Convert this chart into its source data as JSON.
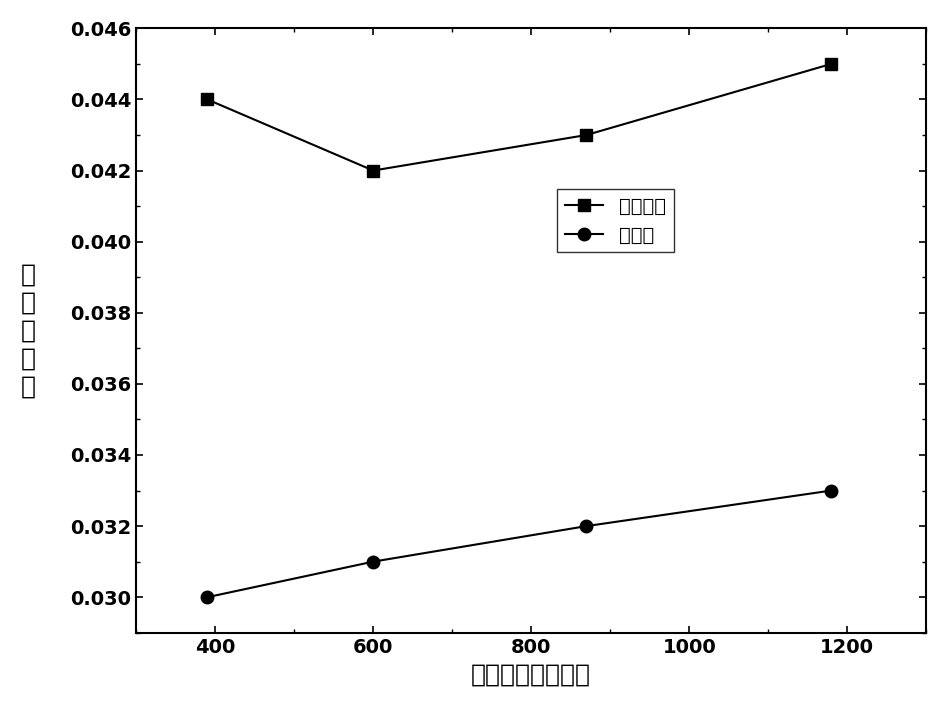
{
  "series1_label": "白玻璃管",
  "series2_label": "滤光管",
  "x_values": [
    390,
    600,
    870,
    1180
  ],
  "series1_y": [
    0.044,
    0.042,
    0.043,
    0.045
  ],
  "series2_y": [
    0.03,
    0.031,
    0.032,
    0.033
  ],
  "xlabel": "泵浦能量（焦耳）",
  "ylabel": "热转换效率",
  "xlim": [
    300,
    1300
  ],
  "ylim": [
    0.029,
    0.046
  ],
  "yticks": [
    0.03,
    0.032,
    0.034,
    0.036,
    0.038,
    0.04,
    0.042,
    0.044,
    0.046
  ],
  "xticks": [
    400,
    600,
    800,
    1000,
    1200
  ],
  "line_color": "#000000",
  "marker1": "s",
  "marker2": "o",
  "markersize": 9,
  "linewidth": 1.5,
  "bg_color": "#ffffff",
  "font_size_label": 18,
  "font_size_tick": 14,
  "font_size_legend": 14
}
